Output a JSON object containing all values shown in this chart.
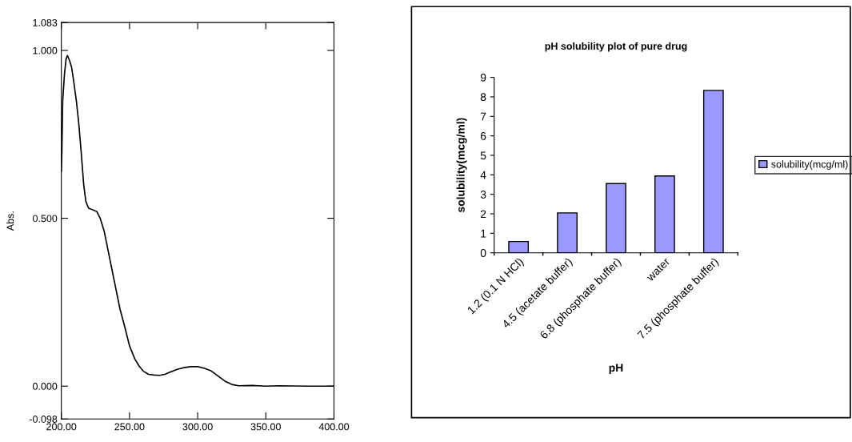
{
  "chart_data": [
    {
      "type": "line",
      "ylabel": "Abs.",
      "xlim": [
        200,
        400
      ],
      "ylim": [
        -0.098,
        1.083
      ],
      "xticks": [
        {
          "value": 200,
          "label": "200.00"
        },
        {
          "value": 250,
          "label": "250.00"
        },
        {
          "value": 300,
          "label": "300.00"
        },
        {
          "value": 350,
          "label": "350.00"
        },
        {
          "value": 400,
          "label": "400.00"
        }
      ],
      "yticks": [
        {
          "value": -0.098,
          "label": "-0.098"
        },
        {
          "value": 0,
          "label": "0.000"
        },
        {
          "value": 0.5,
          "label": "0.500"
        },
        {
          "value": 1.0,
          "label": "1.000"
        },
        {
          "value": 1.083,
          "label": "1.083"
        }
      ],
      "grid": false,
      "legend": false,
      "x": [
        200,
        200.4,
        201,
        202.3,
        203.5,
        204.5,
        206,
        207.5,
        209,
        211,
        212.6,
        214.5,
        216.4,
        218,
        220,
        223,
        226,
        228.5,
        231.5,
        234,
        237,
        240,
        243,
        246.6,
        250,
        254,
        257,
        260,
        264,
        268,
        272,
        276,
        280,
        285,
        290,
        295,
        300,
        305,
        310,
        315,
        320,
        325,
        330,
        340,
        350,
        360,
        380,
        400
      ],
      "series": [
        {
          "color": "#000000",
          "values": [
            0.64,
            0.7,
            0.85,
            0.93,
            0.975,
            0.985,
            0.97,
            0.95,
            0.91,
            0.85,
            0.79,
            0.7,
            0.6,
            0.55,
            0.53,
            0.525,
            0.52,
            0.5,
            0.46,
            0.41,
            0.35,
            0.29,
            0.23,
            0.175,
            0.12,
            0.08,
            0.06,
            0.045,
            0.035,
            0.033,
            0.032,
            0.035,
            0.042,
            0.05,
            0.055,
            0.058,
            0.058,
            0.053,
            0.045,
            0.03,
            0.015,
            0.005,
            0.001,
            0.002,
            0.0,
            0.001,
            0.0,
            0.0
          ]
        }
      ]
    },
    {
      "type": "bar",
      "title": "pH solubility plot of pure drug",
      "xlabel": "pH",
      "ylabel": "solubility(mcg/ml)",
      "categories": [
        "1.2 (0.1 N HCl)",
        "4.5 (acetate buffer)",
        "6.8 (phosphate buffer)",
        "water",
        "7.5 (phosphate buffer)"
      ],
      "ylim": [
        0,
        9
      ],
      "yticks": [
        0,
        1,
        2,
        3,
        4,
        5,
        6,
        7,
        8,
        9
      ],
      "grid": false,
      "legend": "right",
      "series": [
        {
          "name": "solubility(mcg/ml)",
          "color": "#9999ff",
          "values": [
            0.58,
            2.05,
            3.55,
            3.94,
            8.33
          ]
        }
      ]
    }
  ]
}
